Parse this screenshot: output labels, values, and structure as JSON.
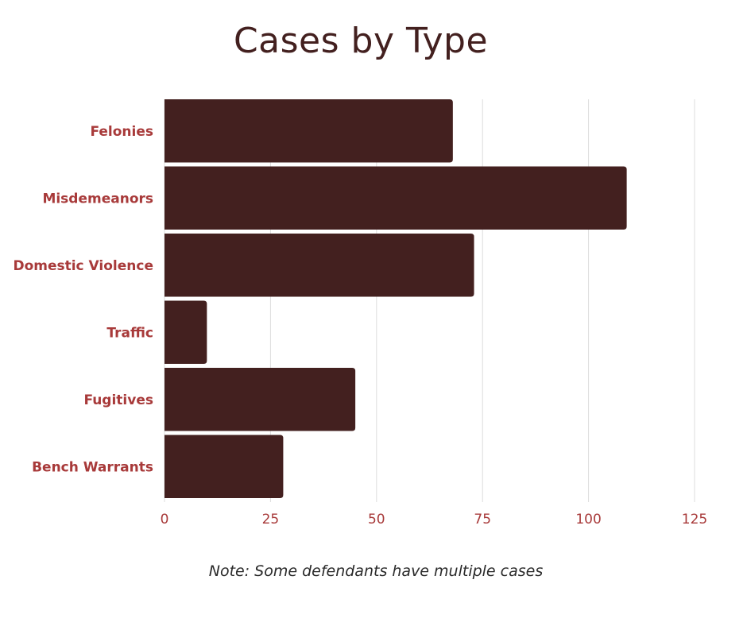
{
  "chart_data": {
    "type": "bar",
    "orientation": "horizontal",
    "title": "Cases by Type",
    "categories": [
      "Felonies",
      "Misdemeanors",
      "Domestic Violence",
      "Traffic",
      "Fugitives",
      "Bench Warrants"
    ],
    "values": [
      68,
      109,
      73,
      10,
      45,
      28
    ],
    "xlim": [
      0,
      125
    ],
    "xticks": [
      0,
      25,
      50,
      75,
      100,
      125
    ],
    "grid": "vertical",
    "bar_color": "#43201f",
    "label_color": "#a83a3a",
    "note": "Note: Some defendants have multiple cases"
  }
}
